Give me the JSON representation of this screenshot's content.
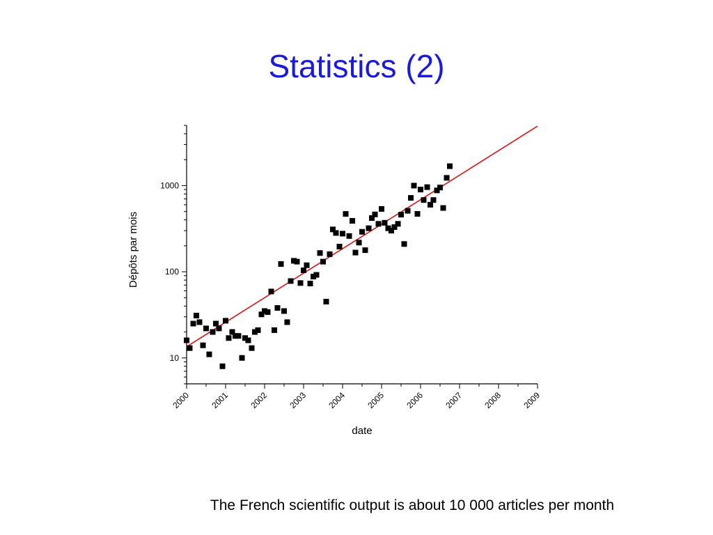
{
  "slide": {
    "title": "Statistics (2)",
    "caption": "The French scientific output is about 10 000 articles per month"
  },
  "chart_data": {
    "type": "scatter",
    "xlabel": "date",
    "ylabel": "Dépôts par mois",
    "xlim": [
      2000,
      2009
    ],
    "ylim": [
      5,
      5000
    ],
    "yscale": "log",
    "xticks": [
      "2000",
      "2001",
      "2002",
      "2003",
      "2004",
      "2005",
      "2006",
      "2007",
      "2008",
      "2009"
    ],
    "yticks": [
      {
        "value": 10,
        "label": "10"
      },
      {
        "value": 100,
        "label": "100"
      },
      {
        "value": 1000,
        "label": "1000"
      }
    ],
    "grid": false,
    "marker_color": "#000000",
    "fit_color": "#dd1111",
    "fit_line": {
      "x": [
        2000,
        2009
      ],
      "y": [
        13.5,
        4900
      ]
    },
    "points": [
      [
        2000.0,
        16
      ],
      [
        2000.08,
        13
      ],
      [
        2000.17,
        25
      ],
      [
        2000.25,
        31
      ],
      [
        2000.33,
        26
      ],
      [
        2000.42,
        14
      ],
      [
        2000.5,
        22
      ],
      [
        2000.58,
        11
      ],
      [
        2000.67,
        20
      ],
      [
        2000.75,
        25
      ],
      [
        2000.83,
        22
      ],
      [
        2000.92,
        8
      ],
      [
        2001.0,
        27
      ],
      [
        2001.08,
        17
      ],
      [
        2001.17,
        20
      ],
      [
        2001.25,
        18
      ],
      [
        2001.33,
        18
      ],
      [
        2001.42,
        10
      ],
      [
        2001.5,
        17
      ],
      [
        2001.58,
        16
      ],
      [
        2001.67,
        13
      ],
      [
        2001.75,
        20
      ],
      [
        2001.83,
        21
      ],
      [
        2001.92,
        32
      ],
      [
        2002.0,
        35
      ],
      [
        2002.08,
        34
      ],
      [
        2002.17,
        59
      ],
      [
        2002.25,
        21
      ],
      [
        2002.33,
        38
      ],
      [
        2002.42,
        123
      ],
      [
        2002.5,
        35
      ],
      [
        2002.58,
        26
      ],
      [
        2002.67,
        78
      ],
      [
        2002.75,
        134
      ],
      [
        2002.83,
        131
      ],
      [
        2002.92,
        74
      ],
      [
        2003.0,
        104
      ],
      [
        2003.08,
        119
      ],
      [
        2003.17,
        73
      ],
      [
        2003.25,
        88
      ],
      [
        2003.33,
        92
      ],
      [
        2003.42,
        165
      ],
      [
        2003.5,
        131
      ],
      [
        2003.58,
        45
      ],
      [
        2003.67,
        160
      ],
      [
        2003.75,
        310
      ],
      [
        2003.83,
        282
      ],
      [
        2003.92,
        196
      ],
      [
        2004.0,
        277
      ],
      [
        2004.08,
        469
      ],
      [
        2004.17,
        260
      ],
      [
        2004.25,
        390
      ],
      [
        2004.33,
        167
      ],
      [
        2004.42,
        218
      ],
      [
        2004.5,
        291
      ],
      [
        2004.58,
        178
      ],
      [
        2004.67,
        320
      ],
      [
        2004.75,
        420
      ],
      [
        2004.83,
        463
      ],
      [
        2004.92,
        360
      ],
      [
        2005.0,
        536
      ],
      [
        2005.08,
        370
      ],
      [
        2005.17,
        320
      ],
      [
        2005.25,
        300
      ],
      [
        2005.33,
        330
      ],
      [
        2005.42,
        360
      ],
      [
        2005.5,
        460
      ],
      [
        2005.58,
        210
      ],
      [
        2005.67,
        510
      ],
      [
        2005.75,
        720
      ],
      [
        2005.83,
        1000
      ],
      [
        2005.92,
        470
      ],
      [
        2006.0,
        900
      ],
      [
        2006.08,
        680
      ],
      [
        2006.17,
        960
      ],
      [
        2006.25,
        600
      ],
      [
        2006.33,
        680
      ],
      [
        2006.42,
        880
      ],
      [
        2006.5,
        950
      ],
      [
        2006.58,
        550
      ],
      [
        2006.67,
        1230
      ],
      [
        2006.75,
        1680
      ]
    ]
  }
}
